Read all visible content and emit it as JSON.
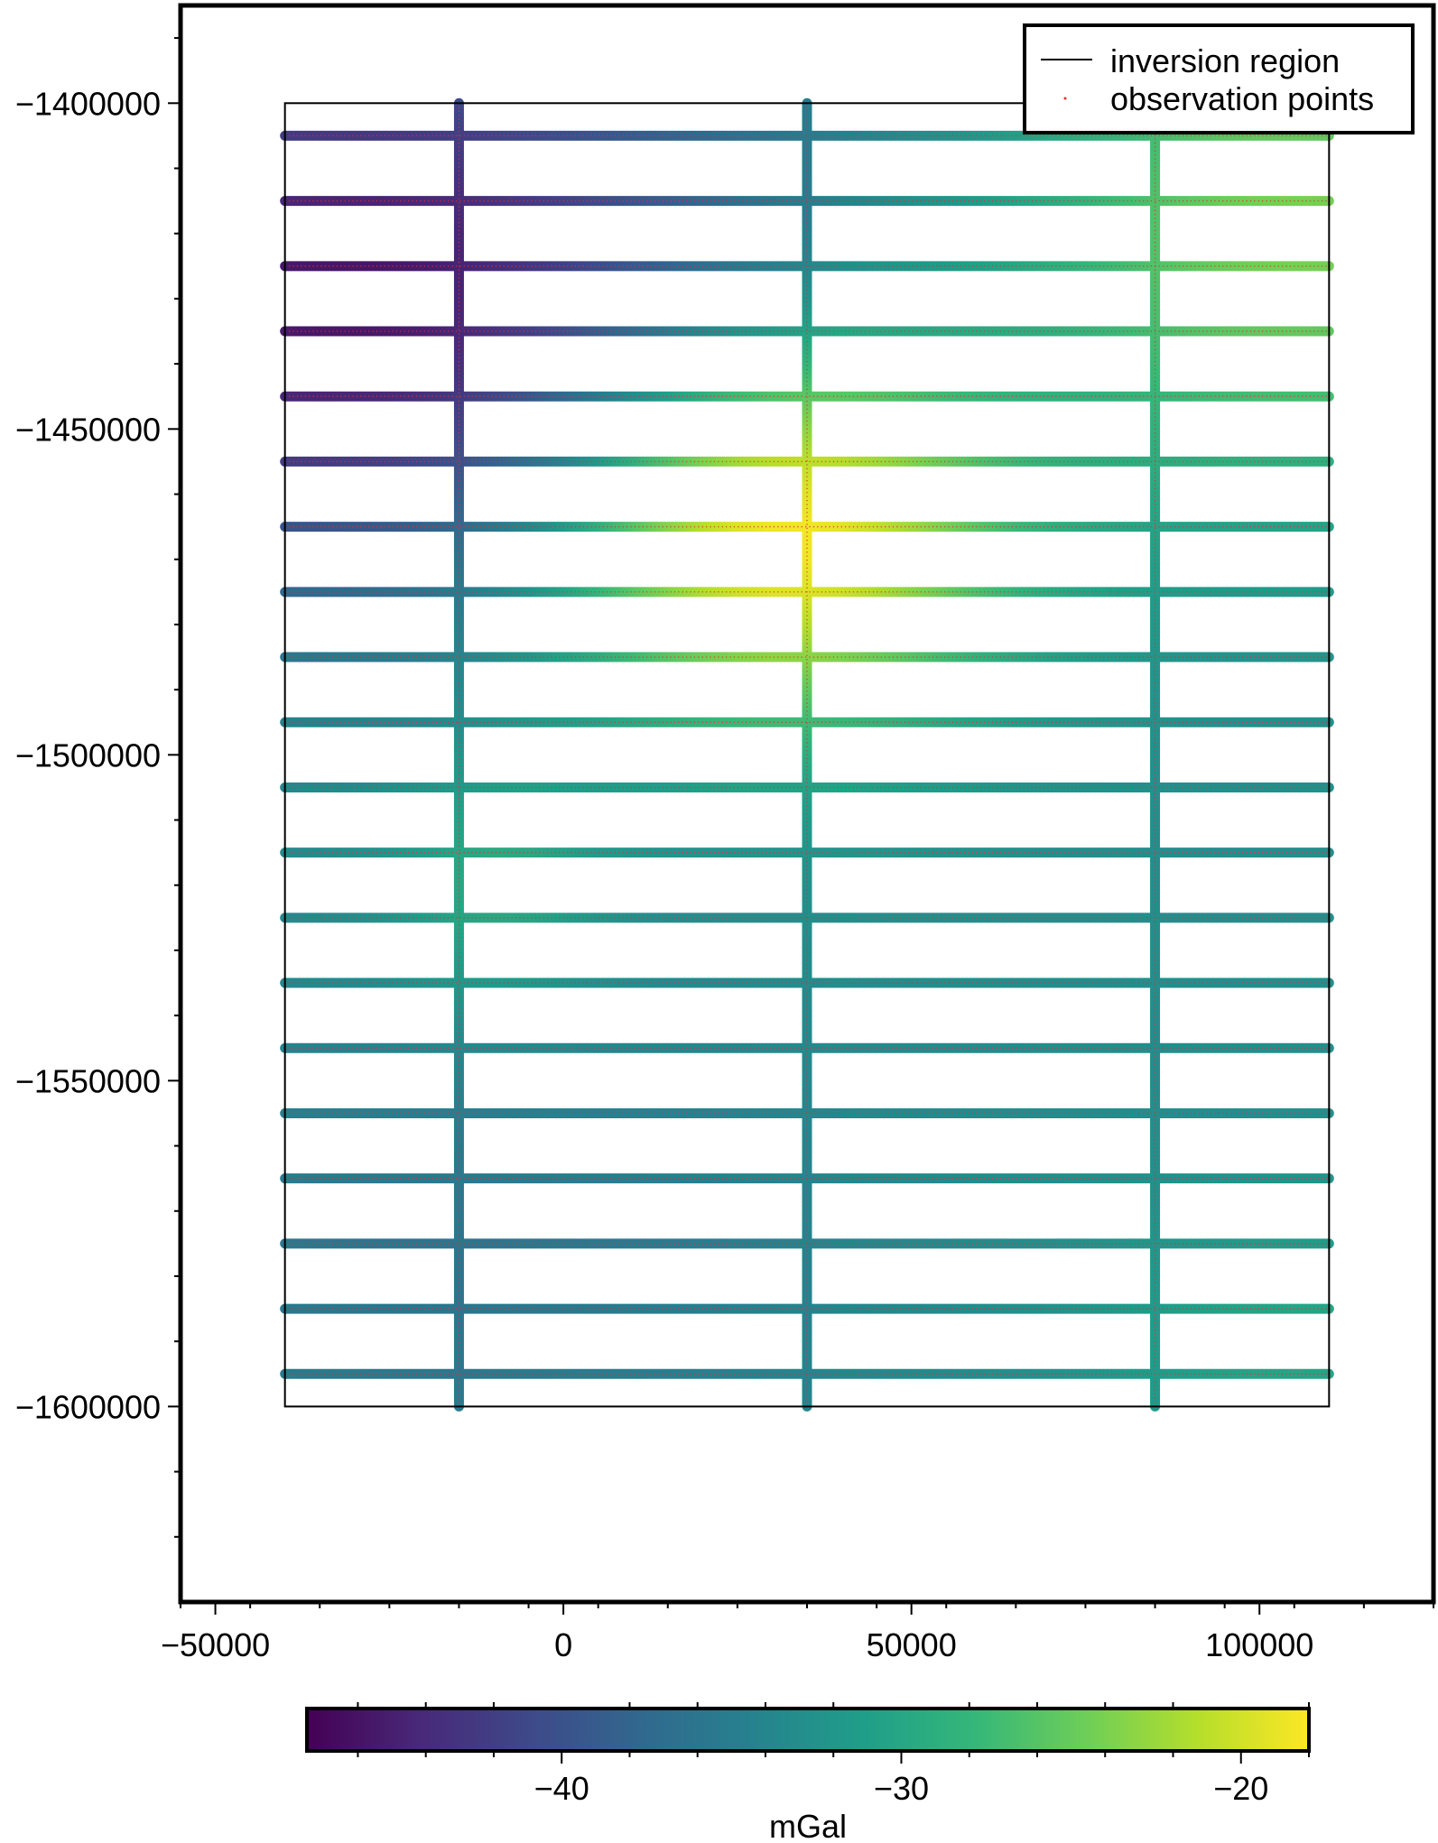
{
  "chart_data": {
    "type": "scatter",
    "title": "",
    "xlabel": "",
    "ylabel": "",
    "xlim": [
      -55000,
      125000
    ],
    "ylim": [
      -1630000,
      -1385000
    ],
    "x_ticks": [
      -50000,
      0,
      50000,
      100000
    ],
    "x_tick_labels": [
      "−50000",
      "0",
      "50000",
      "100000"
    ],
    "y_ticks": [
      -1400000,
      -1450000,
      -1500000,
      -1550000,
      -1600000
    ],
    "y_tick_labels": [
      "−1400000",
      "−1450000",
      "−1500000",
      "−1550000",
      "−1600000"
    ],
    "grid": false,
    "legend": {
      "placement": "top-right",
      "entries": [
        "inversion region",
        "observation points"
      ]
    },
    "inversion_region": {
      "x": [
        -40000,
        110000
      ],
      "y": [
        -1600000,
        -1400000
      ]
    },
    "flight_lines": {
      "east_west": {
        "x_range": [
          -40000,
          110000
        ],
        "y": [
          -1405000,
          -1415000,
          -1425000,
          -1435000,
          -1445000,
          -1455000,
          -1465000,
          -1475000,
          -1485000,
          -1495000,
          -1505000,
          -1515000,
          -1525000,
          -1535000,
          -1545000,
          -1555000,
          -1565000,
          -1575000,
          -1585000,
          -1595000
        ]
      },
      "north_south": {
        "y_range": [
          -1600000,
          -1400000
        ],
        "x": [
          -15000,
          35000,
          85000
        ]
      }
    },
    "colorbar": {
      "label": "mGal",
      "range": [
        -47.5,
        -18
      ],
      "ticks": [
        -40,
        -30,
        -20
      ],
      "tick_labels": [
        "−40",
        "−30",
        "−20"
      ],
      "colormap": "viridis",
      "stops": [
        "#440154",
        "#482878",
        "#3e4989",
        "#31688e",
        "#26828e",
        "#1f9e89",
        "#35b779",
        "#6ece58",
        "#b5de2b",
        "#fde725"
      ]
    },
    "colors": {
      "observation_points": "#e03030",
      "outline": "#000000"
    }
  }
}
